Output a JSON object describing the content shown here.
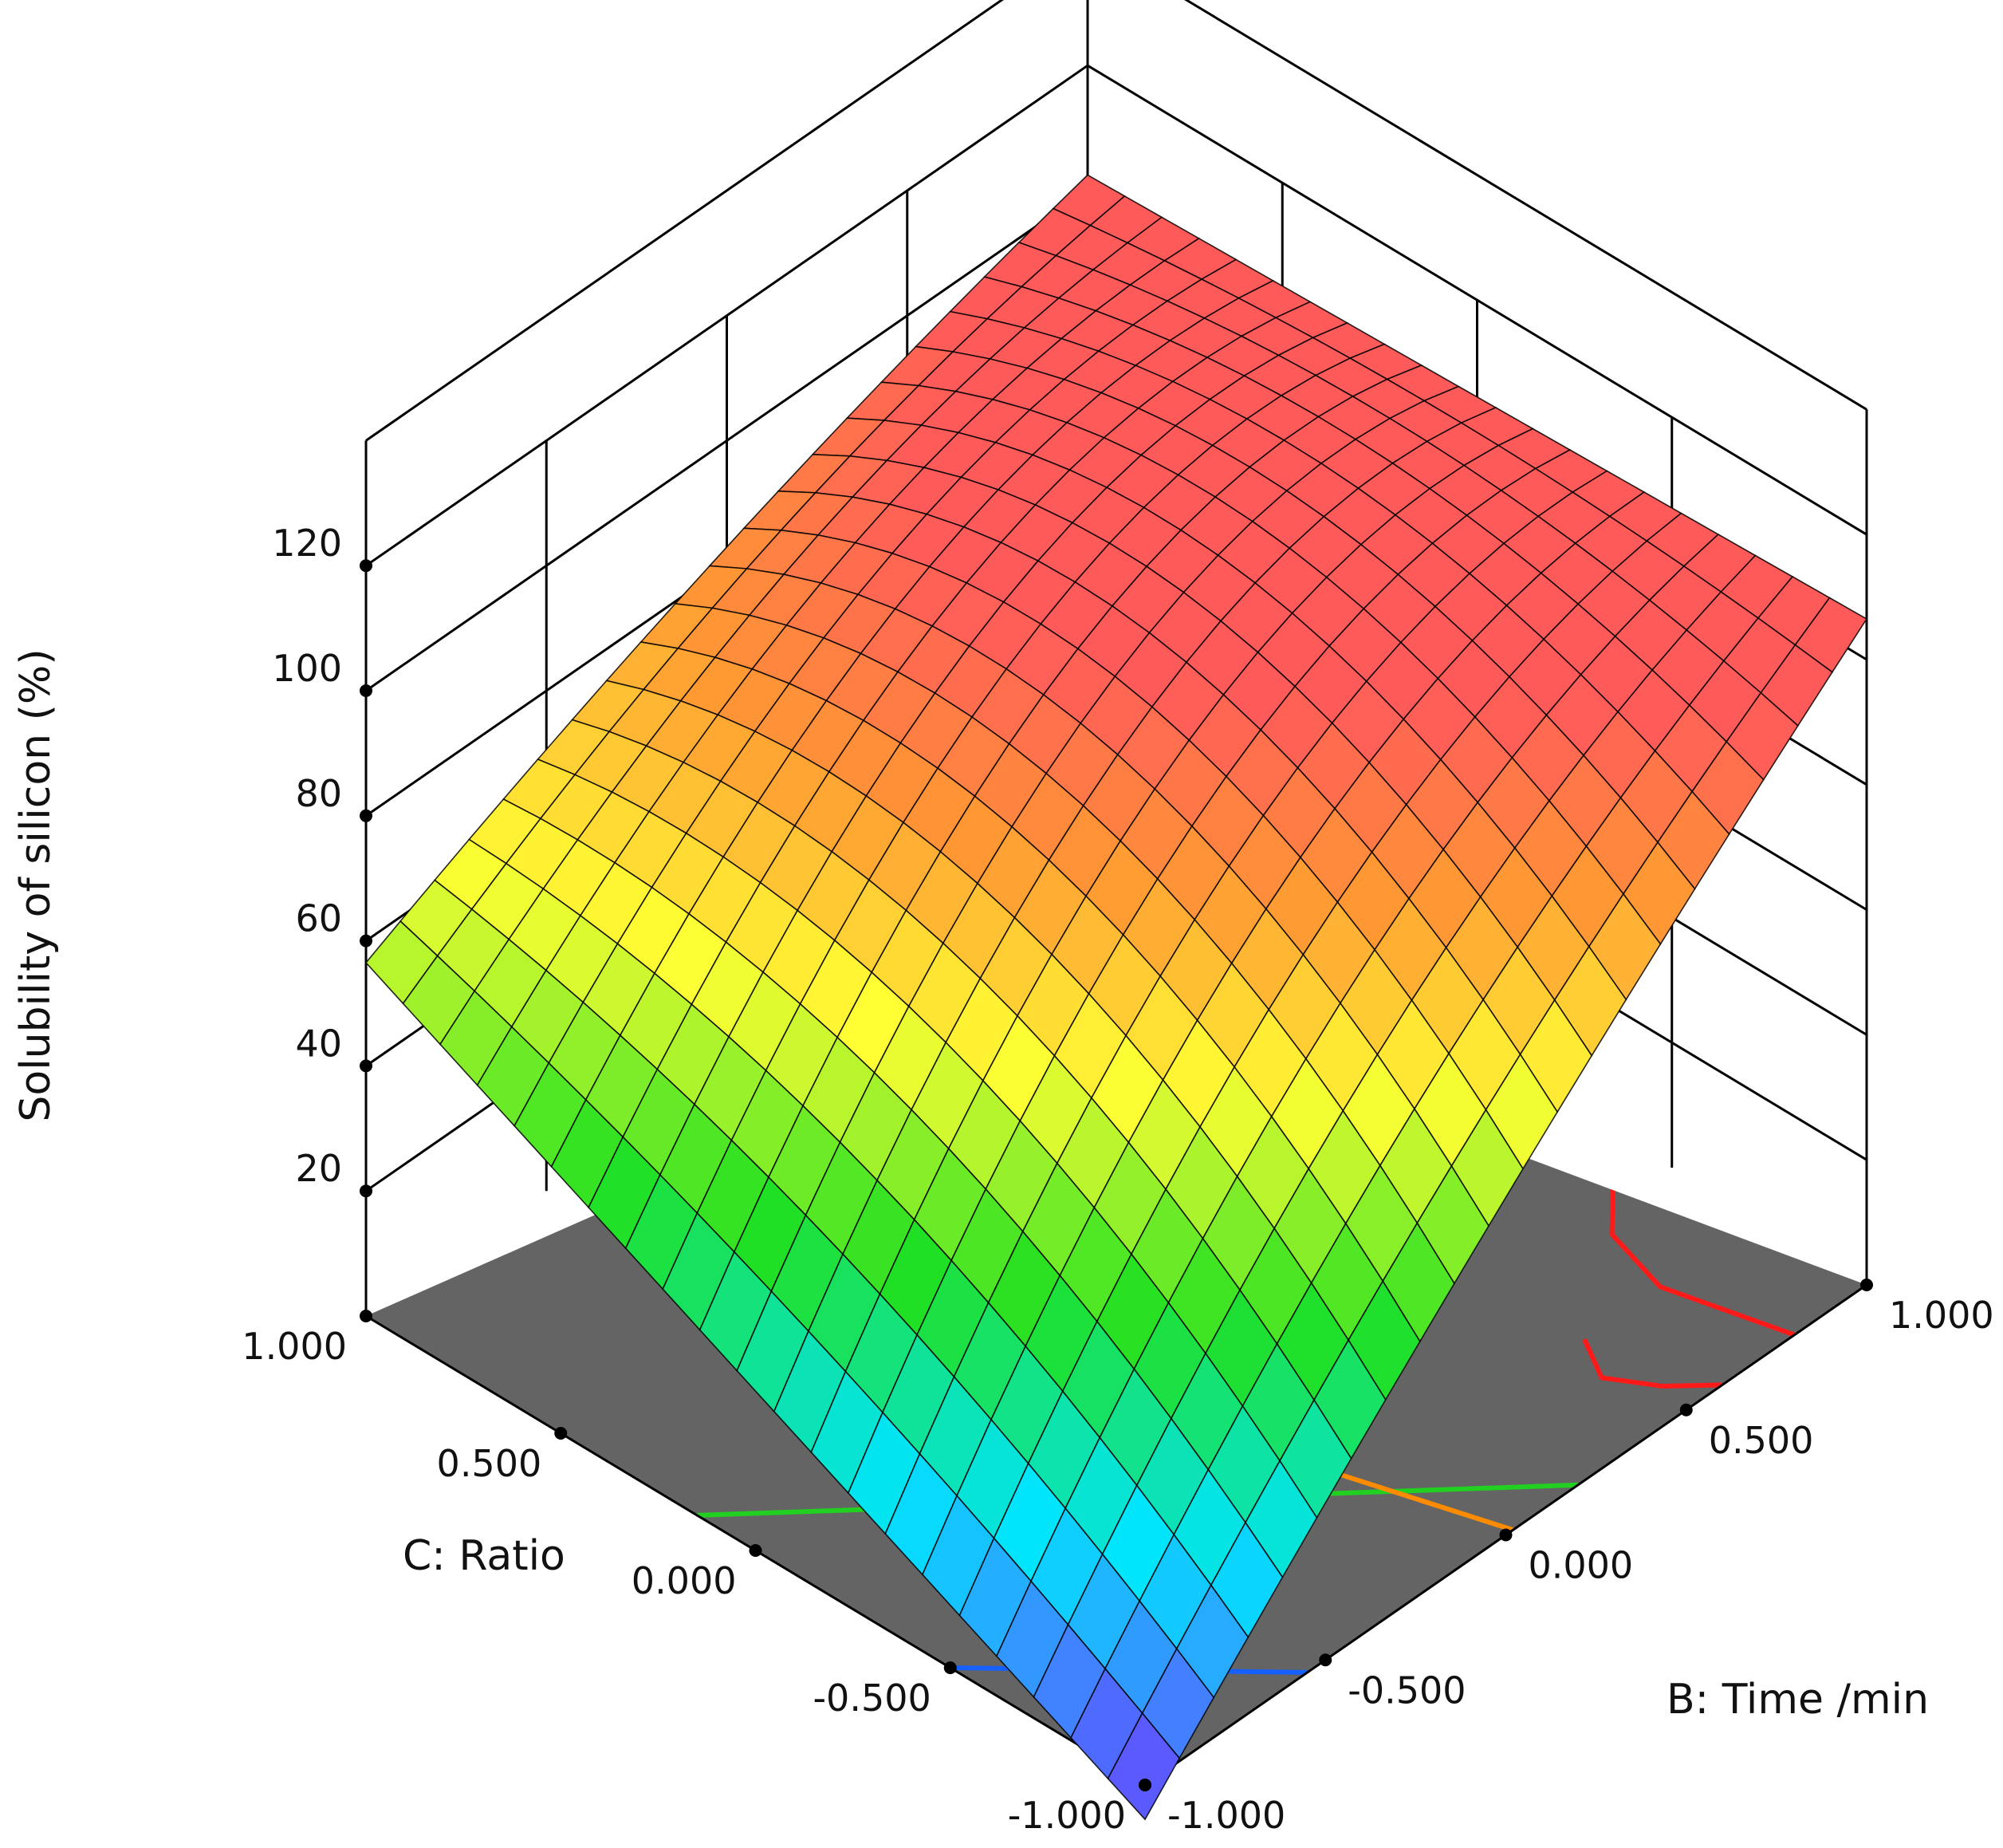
{
  "chart_data": {
    "type": "surface3d",
    "title": "",
    "zlabel": "Solubility of silicon (%)",
    "xlabel": "C: Ratio",
    "ylabel": "B: Time /min",
    "zlim": [
      0,
      120
    ],
    "z_ticks": [
      "20",
      "40",
      "60",
      "80",
      "100",
      "120"
    ],
    "c_ticks": [
      "-1.000",
      "-0.500",
      "0.000",
      "0.500",
      "1.000"
    ],
    "b_ticks": [
      "-1.000",
      "-0.500",
      "0.000",
      "0.500",
      "1.000"
    ],
    "c_range": [
      -1,
      1
    ],
    "b_range": [
      -1,
      1
    ],
    "surface_grid_size": 21,
    "surface_corners": {
      "c_-1_b_-1": 0,
      "c_1_b_-1": 62,
      "c_-1_b_1": 108,
      "c_1_b_1": 104
    },
    "surface_colors": {
      "low": "#5a5aff",
      "mid_low": "#00e5ff",
      "mid": "#21e021",
      "mid_high": "#ffff33",
      "high": "#ff9933",
      "top": "#ff5a5a"
    },
    "floor_color": "#646464",
    "contours": [
      {
        "color": "#1560ff",
        "points_cb": [
          [
            -0.55,
            -1.0
          ],
          [
            -1.0,
            -0.55
          ]
        ]
      },
      {
        "color": "#21d021",
        "points_cb": [
          [
            0.2,
            -1.0
          ],
          [
            -1.0,
            0.2
          ]
        ]
      },
      {
        "color": "#ff8c00",
        "points_cb": [
          [
            0.5,
            1.0
          ],
          [
            -1.0,
            0.1
          ]
        ]
      },
      {
        "color": "#ff1a1a",
        "points_cb": [
          [
            -0.9,
            0.62
          ],
          [
            -1.0,
            0.6
          ]
        ]
      },
      {
        "color": "#ff1a1a",
        "points_cb": [
          [
            -0.55,
            1.0
          ],
          [
            -1.0,
            0.85
          ]
        ]
      }
    ]
  }
}
